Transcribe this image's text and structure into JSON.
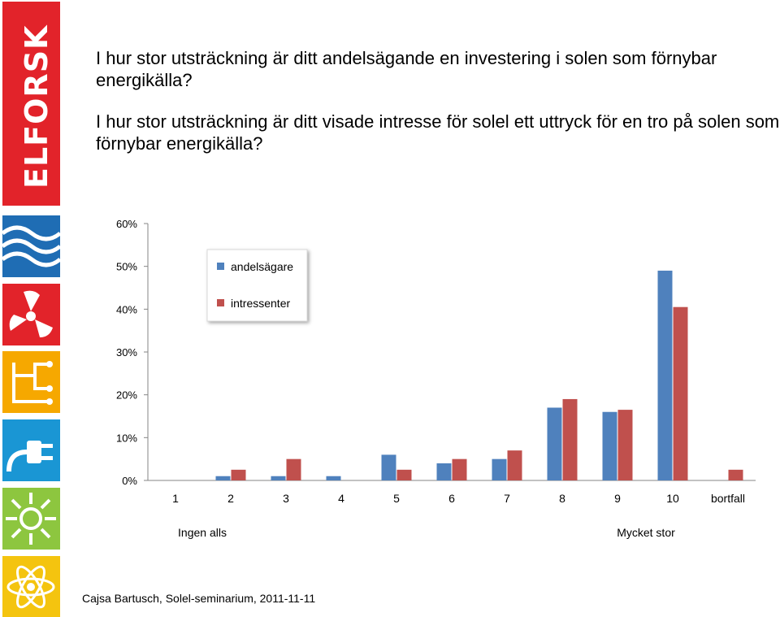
{
  "slide": {
    "question1": "I hur stor utsträckning är ditt andelsägande en investering i solen som förnybar energikälla?",
    "question2": "I hur stor utsträckning är ditt visade intresse för solel ett uttryck för en tro på solen som förnybar energikälla?",
    "brand": "ELFORSK",
    "footer": "Cajsa Bartusch, Solel-seminarium,  2011-11-11"
  },
  "sidebar_icons": [
    "waves-icon",
    "fan-icon",
    "circuit-icon",
    "plug-icon",
    "sun-icon",
    "atom-icon"
  ],
  "chart_data": {
    "type": "bar",
    "categories": [
      "1",
      "2",
      "3",
      "4",
      "5",
      "6",
      "7",
      "8",
      "9",
      "10",
      "bortfall"
    ],
    "series": [
      {
        "name": "andelsägare",
        "color": "#4f81bd",
        "values": [
          0,
          1,
          1,
          1,
          6,
          4,
          5,
          17,
          16,
          49,
          0
        ]
      },
      {
        "name": "intressenter",
        "color": "#c0504d",
        "values": [
          0,
          2.5,
          5,
          0,
          2.5,
          5,
          7,
          19,
          16.5,
          40.5,
          2.5
        ]
      }
    ],
    "ylim": [
      0,
      60
    ],
    "yticks": [
      "0%",
      "10%",
      "20%",
      "30%",
      "40%",
      "50%",
      "60%"
    ],
    "grid": false,
    "legend": "top-left",
    "annotations": [
      "Ingen alls",
      "Mycket stor"
    ]
  }
}
